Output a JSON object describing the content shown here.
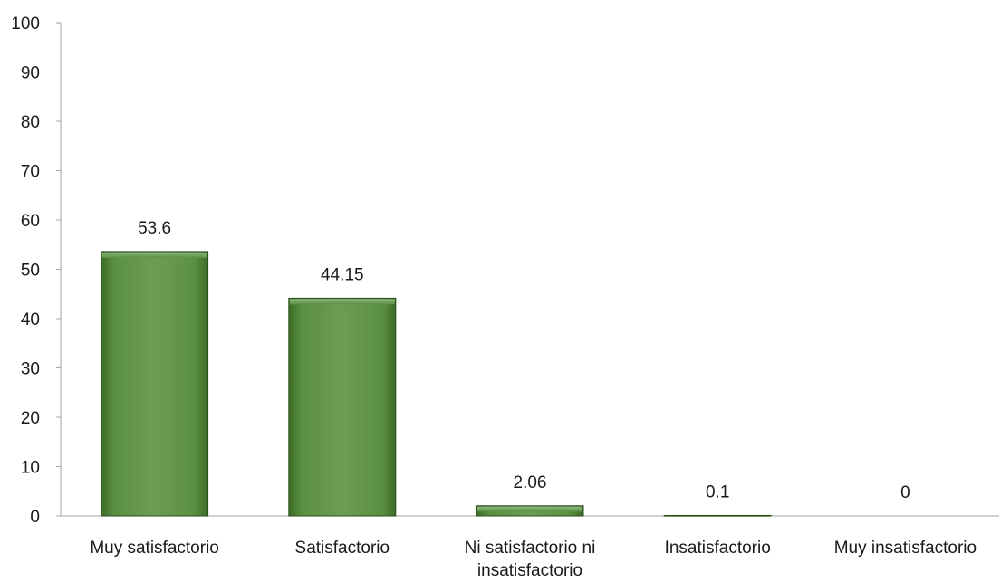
{
  "chart_data": {
    "type": "bar",
    "title": "",
    "xlabel": "",
    "ylabel": "",
    "categories": [
      "Muy satisfactorio",
      "Satisfactorio",
      "Ni satisfactorio ni insatisfactorio",
      "Insatisfactorio",
      "Muy insatisfactorio"
    ],
    "category_lines": [
      [
        "Muy satisfactorio"
      ],
      [
        "Satisfactorio"
      ],
      [
        "Ni satisfactorio ni",
        "insatisfactorio"
      ],
      [
        "Insatisfactorio"
      ],
      [
        "Muy insatisfactorio"
      ]
    ],
    "values": [
      53.6,
      44.15,
      2.06,
      0.1,
      0
    ],
    "value_labels": [
      "53.6",
      "44.15",
      "2.06",
      "0.1",
      "0"
    ],
    "ylim": [
      0,
      100
    ],
    "yticks": [
      0,
      10,
      20,
      30,
      40,
      50,
      60,
      70,
      80,
      90,
      100
    ],
    "grid": false,
    "legend": "none",
    "colors": {
      "bar_light": "#7aa868",
      "bar_mid": "#5a8f43",
      "bar_dark": "#3c6b27",
      "bar_edge": "#2a4d1b",
      "axis": "#a6a6a6",
      "text": "#1a1a1a"
    }
  }
}
